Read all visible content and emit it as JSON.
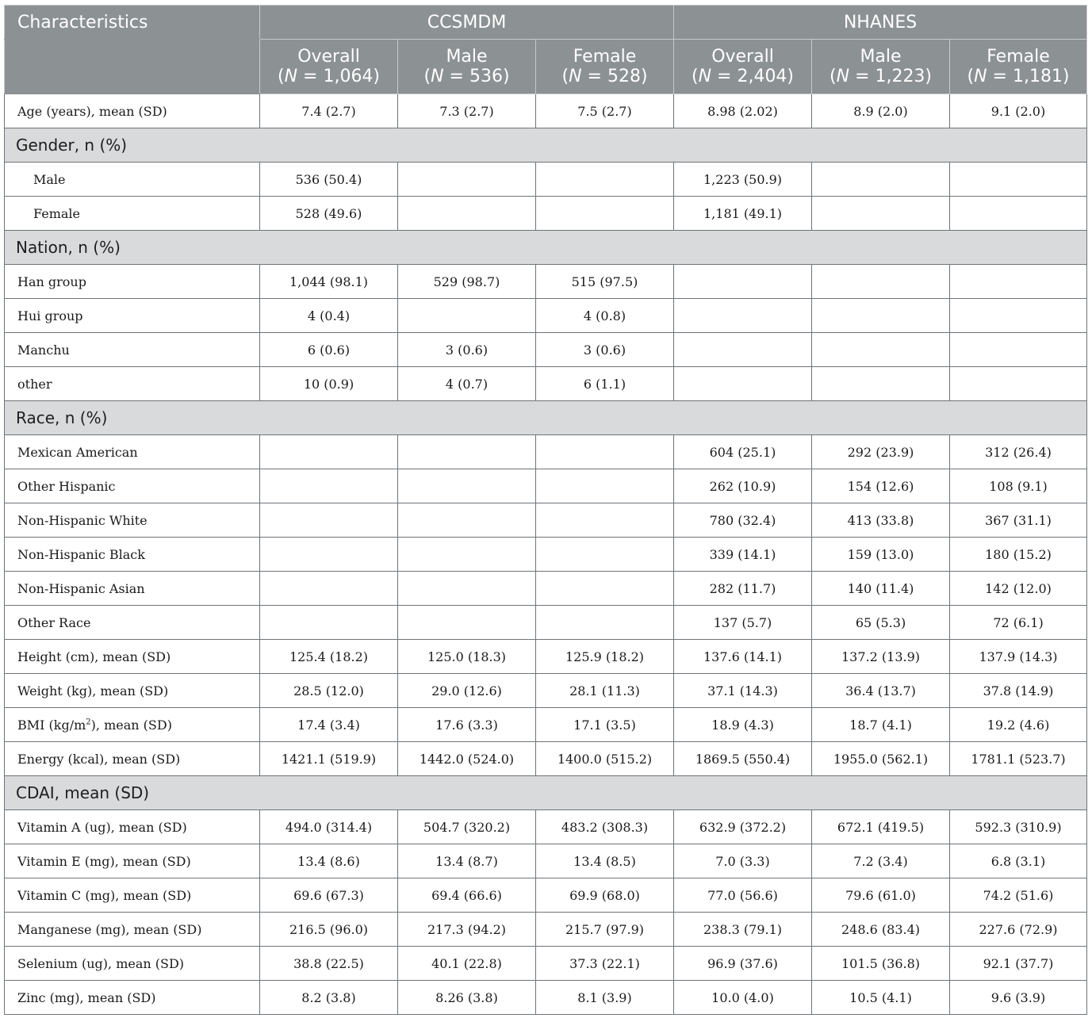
{
  "header": {
    "characteristics": "Characteristics",
    "groups": [
      "CCSMDM",
      "NHANES"
    ],
    "columns": [
      {
        "label": "Overall",
        "n_prefix": "(",
        "n_italic": "N",
        "n_value": " = 1,064)"
      },
      {
        "label": "Male",
        "n_prefix": "(",
        "n_italic": "N",
        "n_value": " = 536)"
      },
      {
        "label": "Female",
        "n_prefix": "(",
        "n_italic": "N",
        "n_value": " = 528)"
      },
      {
        "label": "Overall",
        "n_prefix": "(",
        "n_italic": "N",
        "n_value": " = 2,404)"
      },
      {
        "label": "Male",
        "n_prefix": "(",
        "n_italic": "N",
        "n_value": " = 1,223)"
      },
      {
        "label": "Female",
        "n_prefix": "(",
        "n_italic": "N",
        "n_value": " = 1,181)"
      }
    ]
  },
  "rows": [
    {
      "type": "data",
      "label": "Age (years), mean (SD)",
      "values": [
        "7.4 (2.7)",
        "7.3 (2.7)",
        "7.5 (2.7)",
        "8.98 (2.02)",
        "8.9 (2.0)",
        "9.1 (2.0)"
      ]
    },
    {
      "type": "section",
      "label": "Gender, n (%)"
    },
    {
      "type": "data",
      "indent": true,
      "label": "Male",
      "values": [
        "536 (50.4)",
        "",
        "",
        "1,223 (50.9)",
        "",
        ""
      ]
    },
    {
      "type": "data",
      "indent": true,
      "label": "Female",
      "values": [
        "528 (49.6)",
        "",
        "",
        "1,181 (49.1)",
        "",
        ""
      ]
    },
    {
      "type": "section",
      "label": "Nation, n (%)"
    },
    {
      "type": "data",
      "label": "Han group",
      "values": [
        "1,044 (98.1)",
        "529 (98.7)",
        "515 (97.5)",
        "",
        "",
        ""
      ]
    },
    {
      "type": "data",
      "label": "Hui group",
      "values": [
        "4 (0.4)",
        "",
        "4 (0.8)",
        "",
        "",
        ""
      ]
    },
    {
      "type": "data",
      "label": "Manchu",
      "values": [
        "6 (0.6)",
        "3 (0.6)",
        "3 (0.6)",
        "",
        "",
        ""
      ]
    },
    {
      "type": "data",
      "label": "other",
      "values": [
        "10 (0.9)",
        "4 (0.7)",
        "6 (1.1)",
        "",
        "",
        ""
      ]
    },
    {
      "type": "section",
      "label": "Race, n (%)"
    },
    {
      "type": "data",
      "label": "Mexican American",
      "values": [
        "",
        "",
        "",
        "604 (25.1)",
        "292 (23.9)",
        "312 (26.4)"
      ]
    },
    {
      "type": "data",
      "label": "Other Hispanic",
      "values": [
        "",
        "",
        "",
        "262 (10.9)",
        "154 (12.6)",
        "108 (9.1)"
      ]
    },
    {
      "type": "data",
      "label": "Non-Hispanic White",
      "values": [
        "",
        "",
        "",
        "780 (32.4)",
        "413 (33.8)",
        "367 (31.1)"
      ]
    },
    {
      "type": "data",
      "label": "Non-Hispanic Black",
      "values": [
        "",
        "",
        "",
        "339 (14.1)",
        "159 (13.0)",
        "180 (15.2)"
      ]
    },
    {
      "type": "data",
      "label": "Non-Hispanic Asian",
      "values": [
        "",
        "",
        "",
        "282 (11.7)",
        "140 (11.4)",
        "142 (12.0)"
      ]
    },
    {
      "type": "data",
      "label": "Other Race",
      "values": [
        "",
        "",
        "",
        "137 (5.7)",
        "65 (5.3)",
        "72 (6.1)"
      ]
    },
    {
      "type": "data",
      "label": "Height (cm), mean (SD)",
      "values": [
        "125.4 (18.2)",
        "125.0 (18.3)",
        "125.9 (18.2)",
        "137.6 (14.1)",
        "137.2 (13.9)",
        "137.9 (14.3)"
      ]
    },
    {
      "type": "data",
      "label": "Weight (kg), mean (SD)",
      "values": [
        "28.5 (12.0)",
        "29.0 (12.6)",
        "28.1 (11.3)",
        "37.1 (14.3)",
        "36.4 (13.7)",
        "37.8 (14.9)"
      ]
    },
    {
      "type": "data",
      "label": "BMI (kg/m",
      "label_sup": "2",
      "label_suffix": "), mean (SD)",
      "values": [
        "17.4 (3.4)",
        "17.6 (3.3)",
        "17.1 (3.5)",
        "18.9 (4.3)",
        "18.7 (4.1)",
        "19.2 (4.6)"
      ]
    },
    {
      "type": "data",
      "label": "Energy (kcal), mean (SD)",
      "values": [
        "1421.1 (519.9)",
        "1442.0 (524.0)",
        "1400.0 (515.2)",
        "1869.5 (550.4)",
        "1955.0 (562.1)",
        "1781.1 (523.7)"
      ]
    },
    {
      "type": "section",
      "label": "CDAI, mean (SD)"
    },
    {
      "type": "data",
      "label": "Vitamin A (ug), mean (SD)",
      "values": [
        "494.0 (314.4)",
        "504.7 (320.2)",
        "483.2 (308.3)",
        "632.9 (372.2)",
        "672.1 (419.5)",
        "592.3 (310.9)"
      ]
    },
    {
      "type": "data",
      "label": "Vitamin E (mg), mean (SD)",
      "values": [
        "13.4 (8.6)",
        "13.4 (8.7)",
        "13.4 (8.5)",
        "7.0 (3.3)",
        "7.2 (3.4)",
        "6.8 (3.1)"
      ]
    },
    {
      "type": "data",
      "label": "Vitamin C (mg), mean (SD)",
      "values": [
        "69.6 (67.3)",
        "69.4 (66.6)",
        "69.9 (68.0)",
        "77.0 (56.6)",
        "79.6 (61.0)",
        "74.2 (51.6)"
      ]
    },
    {
      "type": "data",
      "label": "Manganese (mg), mean (SD)",
      "values": [
        "216.5 (96.0)",
        "217.3 (94.2)",
        "215.7 (97.9)",
        "238.3 (79.1)",
        "248.6 (83.4)",
        "227.6 (72.9)"
      ]
    },
    {
      "type": "data",
      "label": "Selenium (ug), mean (SD)",
      "values": [
        "38.8 (22.5)",
        "40.1 (22.8)",
        "37.3 (22.1)",
        "96.9 (37.6)",
        "101.5 (36.8)",
        "92.1 (37.7)"
      ]
    },
    {
      "type": "data",
      "label": "Zinc (mg), mean (SD)",
      "values": [
        "8.2 (3.8)",
        "8.26 (3.8)",
        "8.1 (3.9)",
        "10.0 (4.0)",
        "10.5 (4.1)",
        "9.6 (3.9)"
      ]
    }
  ]
}
